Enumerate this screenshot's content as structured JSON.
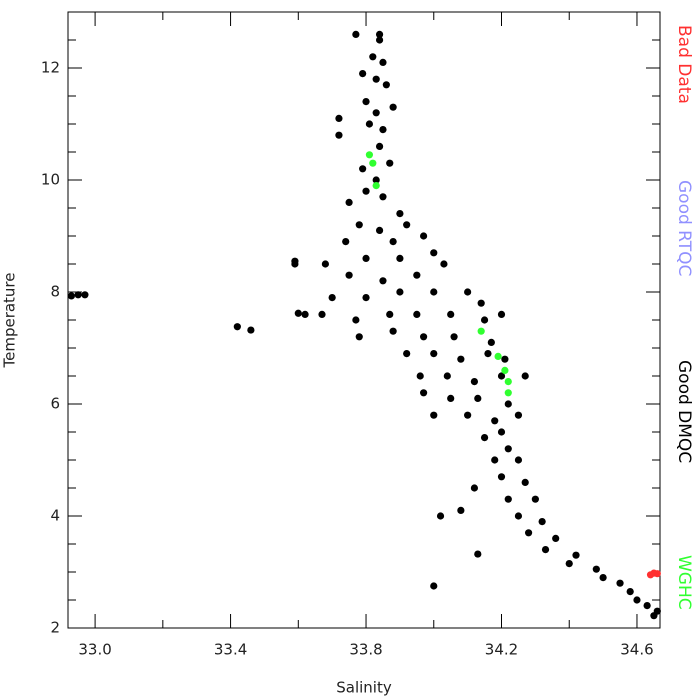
{
  "chart_data": {
    "type": "scatter",
    "x_label": "Salinity",
    "y_label": "Temperature",
    "xlim": [
      32.92,
      34.668
    ],
    "ylim": [
      2,
      13
    ],
    "xticks": [
      {
        "value": 33.0,
        "label": "33.0"
      },
      {
        "value": 33.4,
        "label": "33.4"
      },
      {
        "value": 33.8,
        "label": "33.8"
      },
      {
        "value": 34.2,
        "label": "34.2"
      },
      {
        "value": 34.6,
        "label": "34.6"
      }
    ],
    "xminor_ticks": [
      33.2,
      33.6,
      34.0,
      34.4
    ],
    "yticks": [
      2,
      4,
      6,
      8,
      10,
      12
    ],
    "yminor_ticks": [
      2.5,
      3,
      3.5,
      4.5,
      5,
      5.5,
      6.5,
      7,
      7.5,
      8.5,
      9,
      9.5,
      10.5,
      11,
      11.5,
      12.5
    ],
    "legend": "right",
    "series": [
      {
        "name": "Bad Data",
        "color": "#ff3030",
        "x": [
          34.64,
          34.65,
          34.66
        ],
        "y": [
          2.95,
          2.98,
          2.97
        ]
      },
      {
        "name": "Good RTQC",
        "color": "#9090ff",
        "x": [],
        "y": []
      },
      {
        "name": "Good DMQC",
        "color": "#000000",
        "x": [
          32.93,
          32.95,
          32.97,
          33.42,
          33.46,
          33.59,
          33.59,
          33.6,
          33.62,
          33.67,
          33.68,
          34.0,
          34.13,
          33.77,
          33.84,
          33.84,
          33.82,
          33.85,
          33.79,
          33.83,
          33.86,
          33.8,
          33.83,
          33.88,
          33.81,
          33.85,
          33.72,
          33.72,
          33.84,
          33.79,
          33.83,
          33.87,
          33.8,
          33.75,
          33.85,
          33.9,
          33.78,
          33.84,
          33.92,
          33.74,
          33.88,
          33.97,
          33.8,
          33.9,
          34.0,
          33.75,
          33.85,
          33.95,
          34.03,
          33.7,
          33.8,
          33.9,
          34.0,
          34.1,
          34.14,
          33.77,
          33.87,
          33.95,
          34.05,
          34.15,
          34.2,
          33.78,
          33.88,
          33.97,
          34.06,
          34.17,
          33.92,
          34.0,
          34.08,
          34.16,
          34.21,
          33.96,
          34.04,
          34.12,
          34.2,
          34.27,
          33.97,
          34.05,
          34.13,
          34.22,
          34.0,
          34.1,
          34.18,
          34.25,
          34.15,
          34.2,
          34.22,
          34.18,
          34.25,
          34.2,
          34.27,
          34.12,
          34.22,
          34.3,
          34.02,
          34.08,
          34.25,
          34.32,
          34.28,
          34.36,
          34.33,
          34.42,
          34.4,
          34.48,
          34.5,
          34.55,
          34.58,
          34.6,
          34.63,
          34.66,
          34.65
        ],
        "y": [
          7.93,
          7.95,
          7.95,
          7.38,
          7.32,
          8.55,
          8.5,
          7.62,
          7.6,
          7.6,
          8.5,
          2.75,
          3.32,
          12.6,
          12.6,
          12.5,
          12.2,
          12.1,
          11.9,
          11.8,
          11.7,
          11.4,
          11.2,
          11.3,
          11.0,
          10.9,
          11.1,
          10.8,
          10.6,
          10.2,
          10.0,
          10.3,
          9.8,
          9.6,
          9.7,
          9.4,
          9.2,
          9.1,
          9.2,
          8.9,
          8.9,
          9.0,
          8.6,
          8.6,
          8.7,
          8.3,
          8.2,
          8.3,
          8.5,
          7.9,
          7.9,
          8.0,
          8.0,
          8.0,
          7.8,
          7.5,
          7.6,
          7.6,
          7.6,
          7.5,
          7.6,
          7.2,
          7.3,
          7.2,
          7.2,
          7.1,
          6.9,
          6.9,
          6.8,
          6.9,
          6.8,
          6.5,
          6.5,
          6.4,
          6.5,
          6.5,
          6.2,
          6.1,
          6.1,
          6.0,
          5.8,
          5.8,
          5.7,
          5.8,
          5.4,
          5.5,
          5.2,
          5.0,
          5.0,
          4.7,
          4.6,
          4.5,
          4.3,
          4.3,
          4.0,
          4.1,
          4.0,
          3.9,
          3.7,
          3.6,
          3.4,
          3.3,
          3.15,
          3.05,
          2.9,
          2.8,
          2.65,
          2.5,
          2.4,
          2.3,
          2.22
        ]
      },
      {
        "name": "WGHC",
        "color": "#30ff30",
        "x": [
          33.81,
          33.82,
          33.83,
          34.14,
          34.19,
          34.21,
          34.22,
          34.22
        ],
        "y": [
          10.45,
          10.3,
          9.9,
          7.3,
          6.85,
          6.6,
          6.4,
          6.2
        ]
      }
    ]
  }
}
